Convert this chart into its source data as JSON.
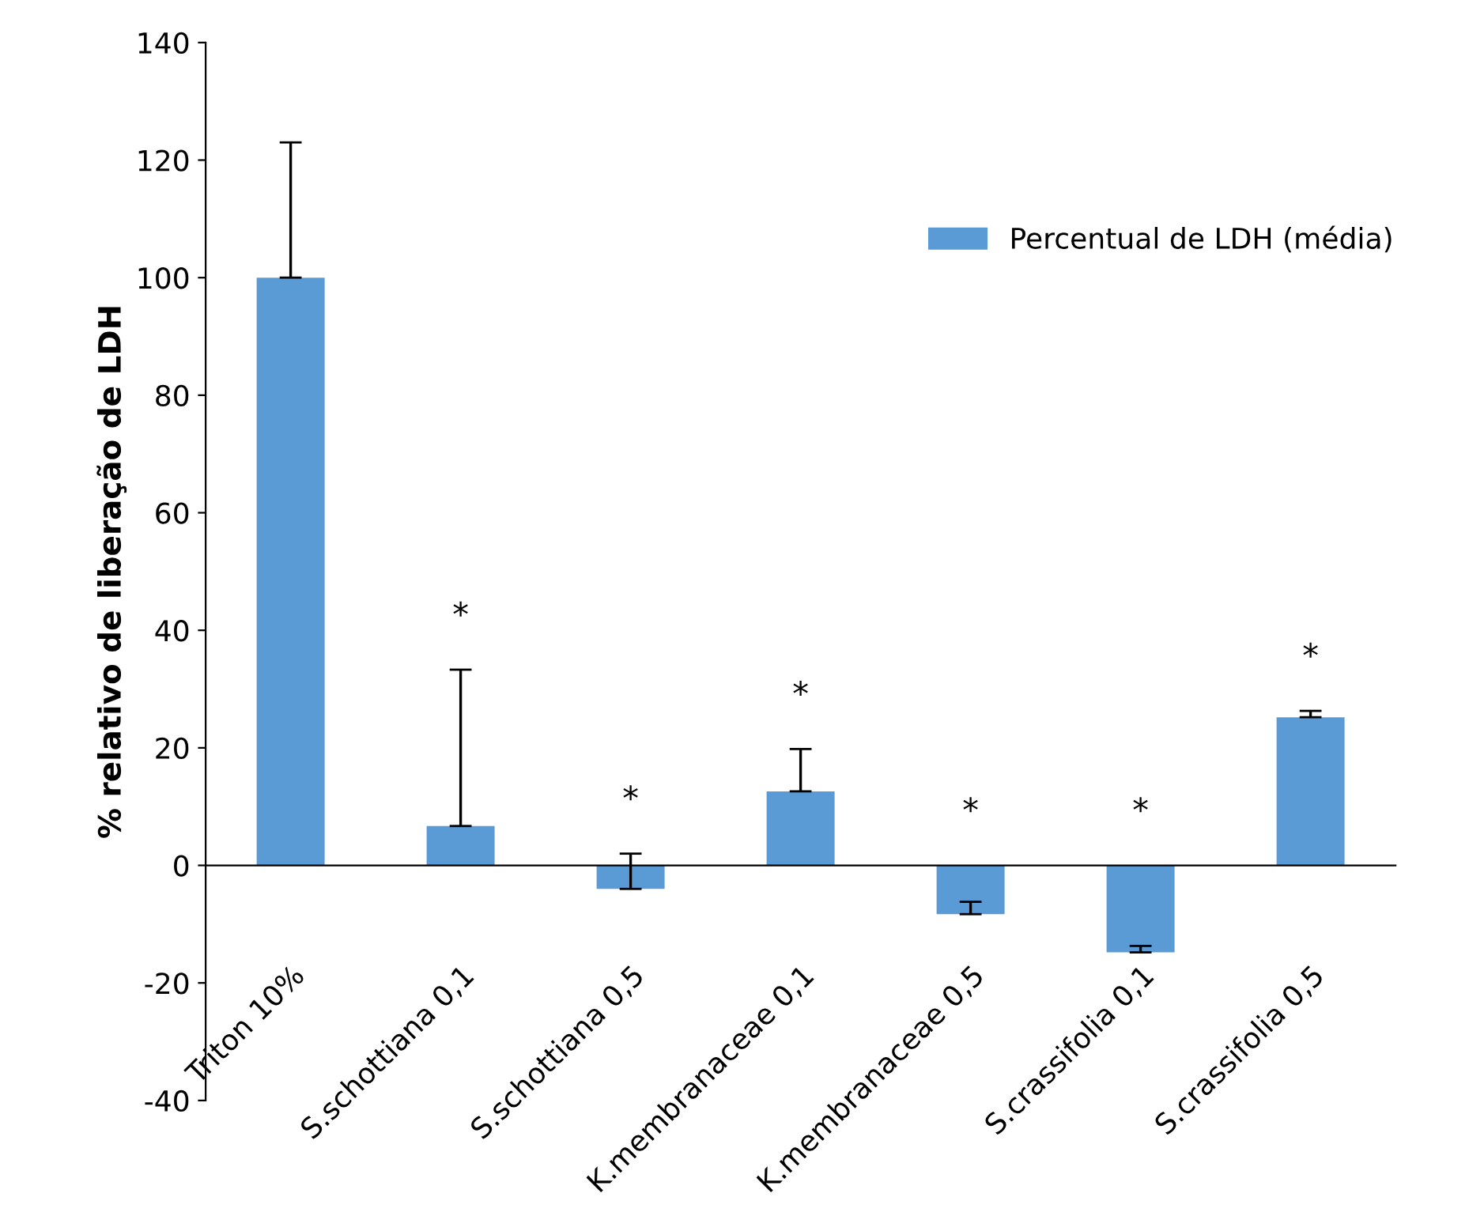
{
  "chart_data": {
    "type": "bar",
    "ylabel": "% relativo de liberação de LDH",
    "categories": [
      "Triton 10%",
      "S.schottiana 0,1",
      "S.schottiana 0,5",
      "K.membranaceae 0,1",
      "K.membranaceae 0,5",
      "S.crassifolia 0,1",
      "S.crassifolia 0,5"
    ],
    "series": [
      {
        "name": "Percentual de LDH (média)",
        "color": "#5b9bd5",
        "values": [
          100,
          6.7,
          -4,
          12.6,
          -8.3,
          -14.8,
          25.2
        ],
        "errors": [
          [
            100,
            123
          ],
          [
            6.7,
            33.3
          ],
          [
            -4,
            2
          ],
          [
            12.6,
            19.8
          ],
          [
            -8.3,
            -6.2
          ],
          [
            -14.8,
            -13.7
          ],
          [
            25.2,
            26.3
          ]
        ]
      }
    ],
    "ylim": [
      -40,
      140
    ],
    "yticks": [
      -40,
      -20,
      0,
      20,
      40,
      60,
      80,
      100,
      120,
      140
    ],
    "annotations": [
      "*",
      "*",
      "*",
      "*",
      "*",
      "*"
    ],
    "legend": "top right"
  }
}
